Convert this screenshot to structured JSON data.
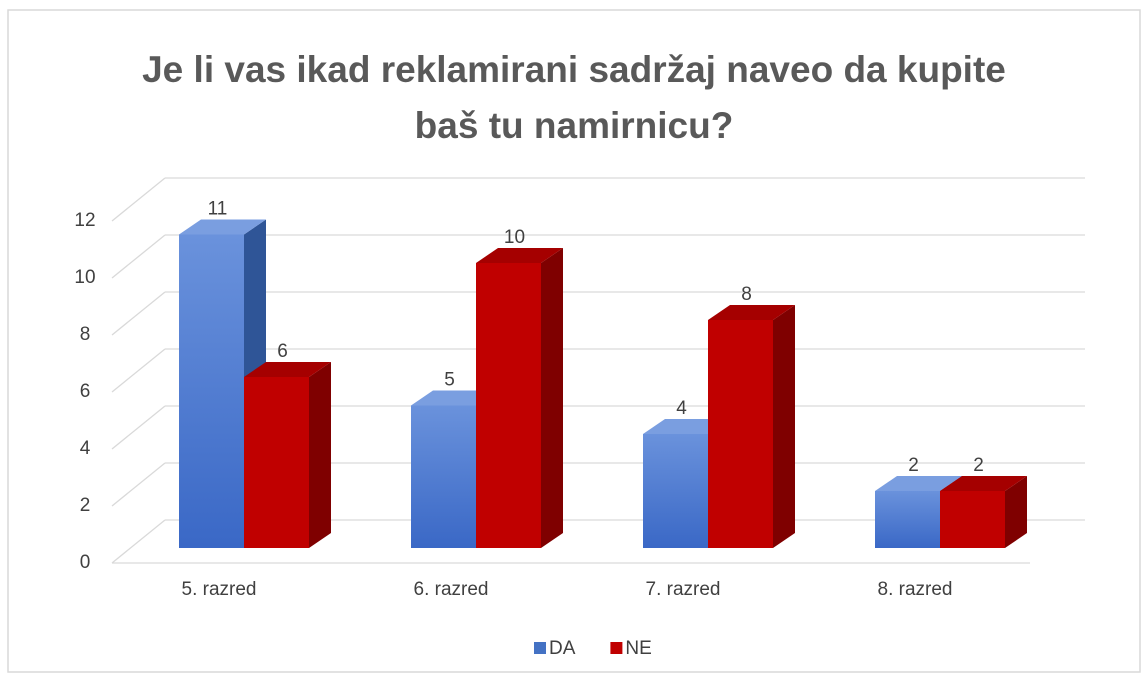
{
  "chart_data": {
    "type": "bar3d",
    "title": "Je li vas ikad reklamirani sadržaj naveo da kupite baš tu namirnicu?",
    "categories": [
      "5. razred",
      "6. razred",
      "7. razred",
      "8. razred"
    ],
    "series": [
      {
        "name": "DA",
        "color": "#4472c4",
        "values": [
          11,
          5,
          4,
          2
        ]
      },
      {
        "name": "NE",
        "color": "#c00000",
        "values": [
          6,
          10,
          8,
          2
        ]
      }
    ],
    "ylim": [
      0,
      12
    ],
    "yticks": [
      0,
      2,
      4,
      6,
      8,
      10,
      12
    ],
    "grid": true,
    "legend": "bottom"
  }
}
